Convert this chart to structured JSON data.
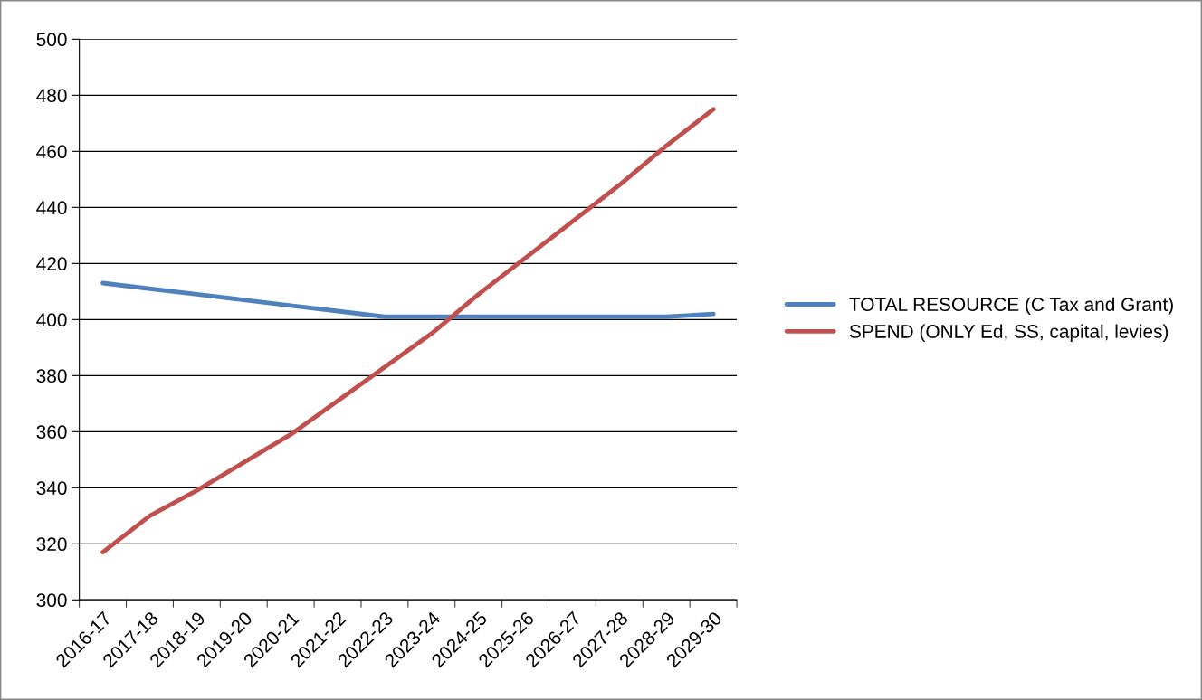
{
  "chart_data": {
    "type": "line",
    "categories": [
      "2016-17",
      "2017-18",
      "2018-19",
      "2019-20",
      "2020-21",
      "2021-22",
      "2022-23",
      "2023-24",
      "2024-25",
      "2025-26",
      "2026-27",
      "2027-28",
      "2028-29",
      "2029-30"
    ],
    "series": [
      {
        "name": "TOTAL RESOURCE (C Tax and Grant)",
        "color": "#4f81bd",
        "values": [
          413,
          411,
          409,
          407,
          405,
          403,
          401,
          401,
          401,
          401,
          401,
          401,
          401,
          402
        ]
      },
      {
        "name": "SPEND (ONLY Ed, SS, capital, levies)",
        "color": "#c0504d",
        "values": [
          317,
          330,
          339,
          349,
          359,
          371,
          383,
          395,
          409,
          422,
          435,
          448,
          462,
          475
        ]
      }
    ],
    "ylim": [
      300,
      500
    ],
    "yticks": [
      300,
      320,
      340,
      360,
      380,
      400,
      420,
      440,
      460,
      480,
      500
    ],
    "grid": "y",
    "legend": "right",
    "marker": "none",
    "line_style": "solid"
  }
}
